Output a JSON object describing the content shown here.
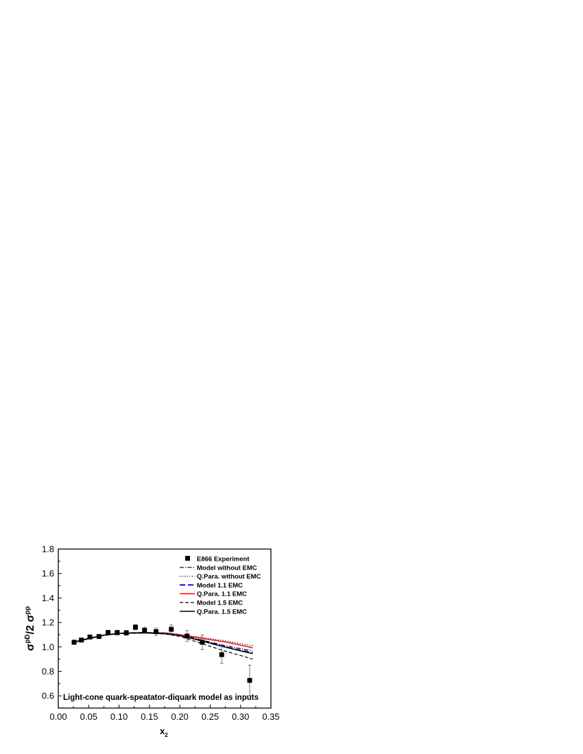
{
  "chart_data": {
    "type": "line",
    "xlabel": "x",
    "xlabel_sub": "2",
    "ylabel": "σ",
    "ylabel_sup1": "pD",
    "ylabel_mid": "/2 σ",
    "ylabel_sup2": "pp",
    "xlim": [
      0.0,
      0.35
    ],
    "ylim": [
      0.5,
      1.8
    ],
    "xticks": [
      "0.00",
      "0.05",
      "0.10",
      "0.15",
      "0.20",
      "0.25",
      "0.30",
      "0.35"
    ],
    "xtick_values": [
      0.0,
      0.05,
      0.1,
      0.15,
      0.2,
      0.25,
      0.3,
      0.35
    ],
    "yticks": [
      "0.6",
      "0.8",
      "1.0",
      "1.2",
      "1.4",
      "1.6",
      "1.8"
    ],
    "ytick_values": [
      0.6,
      0.8,
      1.0,
      1.2,
      1.4,
      1.6,
      1.8
    ],
    "annotation": "Light-cone quark-speatator-diquark model as inputs",
    "legend_position": "top-right",
    "experiment": {
      "name": "E866 Experiment",
      "x": [
        0.026,
        0.038,
        0.052,
        0.067,
        0.082,
        0.097,
        0.112,
        0.127,
        0.142,
        0.161,
        0.186,
        0.212,
        0.237,
        0.269,
        0.315
      ],
      "y": [
        1.038,
        1.056,
        1.081,
        1.085,
        1.118,
        1.117,
        1.115,
        1.161,
        1.136,
        1.125,
        1.144,
        1.089,
        1.038,
        0.937,
        0.726
      ],
      "err": [
        0.018,
        0.016,
        0.015,
        0.017,
        0.018,
        0.019,
        0.02,
        0.021,
        0.025,
        0.03,
        0.035,
        0.045,
        0.06,
        0.07,
        0.125
      ]
    },
    "series": [
      {
        "name": "Model without EMC",
        "style": "dashdot",
        "color": "#000000",
        "x": [
          0.025,
          0.05,
          0.075,
          0.1,
          0.125,
          0.15,
          0.175,
          0.2,
          0.225,
          0.25,
          0.275,
          0.3,
          0.32
        ],
        "y": [
          1.038,
          1.068,
          1.095,
          1.11,
          1.115,
          1.116,
          1.114,
          1.1,
          1.07,
          1.04,
          1.01,
          0.985,
          0.968
        ]
      },
      {
        "name": "Q.Para. without EMC",
        "style": "dotted",
        "color": "#000000",
        "x": [
          0.025,
          0.05,
          0.075,
          0.1,
          0.125,
          0.15,
          0.175,
          0.2,
          0.225,
          0.25,
          0.275,
          0.3,
          0.32
        ],
        "y": [
          1.04,
          1.07,
          1.098,
          1.112,
          1.117,
          1.118,
          1.116,
          1.103,
          1.085,
          1.068,
          1.05,
          1.028,
          1.01
        ]
      },
      {
        "name": "Model 1.1 EMC",
        "style": "dashed",
        "color": "#0000ff",
        "x": [
          0.025,
          0.05,
          0.075,
          0.1,
          0.125,
          0.15,
          0.175,
          0.2,
          0.225,
          0.25,
          0.275,
          0.3,
          0.32
        ],
        "y": [
          1.038,
          1.068,
          1.095,
          1.11,
          1.115,
          1.116,
          1.112,
          1.096,
          1.065,
          1.032,
          1.0,
          0.972,
          0.953
        ]
      },
      {
        "name": "Q.Para. 1.1 EMC",
        "style": "solid",
        "color": "#ff0000",
        "x": [
          0.025,
          0.05,
          0.075,
          0.1,
          0.125,
          0.15,
          0.175,
          0.2,
          0.225,
          0.25,
          0.275,
          0.3,
          0.32
        ],
        "y": [
          1.04,
          1.07,
          1.097,
          1.111,
          1.115,
          1.114,
          1.11,
          1.098,
          1.08,
          1.06,
          1.04,
          1.015,
          0.993
        ]
      },
      {
        "name": "Model 1.5 EMC",
        "style": "dashed-short",
        "color": "#000000",
        "x": [
          0.025,
          0.05,
          0.075,
          0.1,
          0.125,
          0.15,
          0.175,
          0.2,
          0.225,
          0.25,
          0.275,
          0.3,
          0.32
        ],
        "y": [
          1.037,
          1.067,
          1.094,
          1.108,
          1.112,
          1.112,
          1.106,
          1.086,
          1.045,
          1.005,
          0.965,
          0.93,
          0.9
        ]
      },
      {
        "name": "Q.Para. 1.5 EMC",
        "style": "solid",
        "color": "#000000",
        "x": [
          0.025,
          0.05,
          0.075,
          0.1,
          0.125,
          0.15,
          0.175,
          0.2,
          0.225,
          0.25,
          0.275,
          0.3,
          0.32
        ],
        "y": [
          1.039,
          1.069,
          1.096,
          1.11,
          1.114,
          1.113,
          1.108,
          1.093,
          1.062,
          1.03,
          0.998,
          0.968,
          0.945
        ]
      }
    ]
  }
}
